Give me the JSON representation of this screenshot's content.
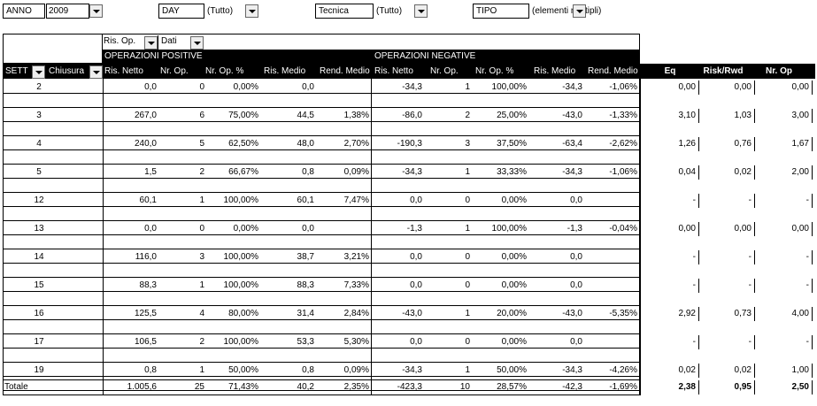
{
  "filters": [
    {
      "label": "ANNO",
      "value": "2009"
    },
    {
      "label": "DAY",
      "value": "(Tutto)"
    },
    {
      "label": "Tecnica",
      "value": "(Tutto)"
    },
    {
      "label": "TIPO",
      "value": "(elementi multipli)"
    }
  ],
  "pivot_fields": {
    "ris_op": "Ris. Op.",
    "dati": "Dati"
  },
  "groups": {
    "positive": "OPERAZIONI POSITIVE",
    "negative": "OPERAZIONI NEGATIVE"
  },
  "row_fields": {
    "sett": "SETT",
    "chiusura": "Chiusura"
  },
  "columns": {
    "pos": [
      "Ris. Netto",
      "Nr. Op.",
      "Nr. Op. %",
      "Ris. Medio",
      "Rend. Medio"
    ],
    "neg": [
      "Ris. Netto",
      "Nr. Op.",
      "Nr. Op. %",
      "Ris. Medio",
      "Rend. Medio"
    ],
    "extra": [
      "Eq",
      "Risk/Rwd",
      "Nr. Op"
    ]
  },
  "rows": [
    {
      "sett": "2",
      "pos": [
        "0,0",
        "0",
        "0,00%",
        "0,0",
        ""
      ],
      "neg": [
        "-34,3",
        "1",
        "100,00%",
        "-34,3",
        "-1,06%"
      ],
      "extra": [
        "0,00",
        "0,00",
        "0,00"
      ]
    },
    {
      "sett": "3",
      "pos": [
        "267,0",
        "6",
        "75,00%",
        "44,5",
        "1,38%"
      ],
      "neg": [
        "-86,0",
        "2",
        "25,00%",
        "-43,0",
        "-1,33%"
      ],
      "extra": [
        "3,10",
        "1,03",
        "3,00"
      ]
    },
    {
      "sett": "4",
      "pos": [
        "240,0",
        "5",
        "62,50%",
        "48,0",
        "2,70%"
      ],
      "neg": [
        "-190,3",
        "3",
        "37,50%",
        "-63,4",
        "-2,62%"
      ],
      "extra": [
        "1,26",
        "0,76",
        "1,67"
      ]
    },
    {
      "sett": "5",
      "pos": [
        "1,5",
        "2",
        "66,67%",
        "0,8",
        "0,09%"
      ],
      "neg": [
        "-34,3",
        "1",
        "33,33%",
        "-34,3",
        "-1,06%"
      ],
      "extra": [
        "0,04",
        "0,02",
        "2,00"
      ]
    },
    {
      "sett": "12",
      "pos": [
        "60,1",
        "1",
        "100,00%",
        "60,1",
        "7,47%"
      ],
      "neg": [
        "0,0",
        "0",
        "0,00%",
        "0,0",
        ""
      ],
      "extra": [
        "-",
        "-",
        "-"
      ]
    },
    {
      "sett": "13",
      "pos": [
        "0,0",
        "0",
        "0,00%",
        "0,0",
        ""
      ],
      "neg": [
        "-1,3",
        "1",
        "100,00%",
        "-1,3",
        "-0,04%"
      ],
      "extra": [
        "0,00",
        "0,00",
        "0,00"
      ]
    },
    {
      "sett": "14",
      "pos": [
        "116,0",
        "3",
        "100,00%",
        "38,7",
        "3,21%"
      ],
      "neg": [
        "0,0",
        "0",
        "0,00%",
        "0,0",
        ""
      ],
      "extra": [
        "-",
        "-",
        "-"
      ]
    },
    {
      "sett": "15",
      "pos": [
        "88,3",
        "1",
        "100,00%",
        "88,3",
        "7,33%"
      ],
      "neg": [
        "0,0",
        "0",
        "0,00%",
        "0,0",
        ""
      ],
      "extra": [
        "-",
        "-",
        "-"
      ]
    },
    {
      "sett": "16",
      "pos": [
        "125,5",
        "4",
        "80,00%",
        "31,4",
        "2,84%"
      ],
      "neg": [
        "-43,0",
        "1",
        "20,00%",
        "-43,0",
        "-5,35%"
      ],
      "extra": [
        "2,92",
        "0,73",
        "4,00"
      ]
    },
    {
      "sett": "17",
      "pos": [
        "106,5",
        "2",
        "100,00%",
        "53,3",
        "5,30%"
      ],
      "neg": [
        "0,0",
        "0",
        "0,00%",
        "0,0",
        ""
      ],
      "extra": [
        "-",
        "-",
        "-"
      ]
    },
    {
      "sett": "19",
      "pos": [
        "0,8",
        "1",
        "50,00%",
        "0,8",
        "0,09%"
      ],
      "neg": [
        "-34,3",
        "1",
        "50,00%",
        "-34,3",
        "-4,26%"
      ],
      "extra": [
        "0,02",
        "0,02",
        "1,00"
      ]
    }
  ],
  "total": {
    "label": "Totale",
    "pos": [
      "1.005,6",
      "25",
      "71,43%",
      "40,2",
      "2,35%"
    ],
    "neg": [
      "-423,3",
      "10",
      "28,57%",
      "-42,3",
      "-1,69%"
    ],
    "extra": [
      "2,38",
      "0,95",
      "2,50"
    ]
  }
}
